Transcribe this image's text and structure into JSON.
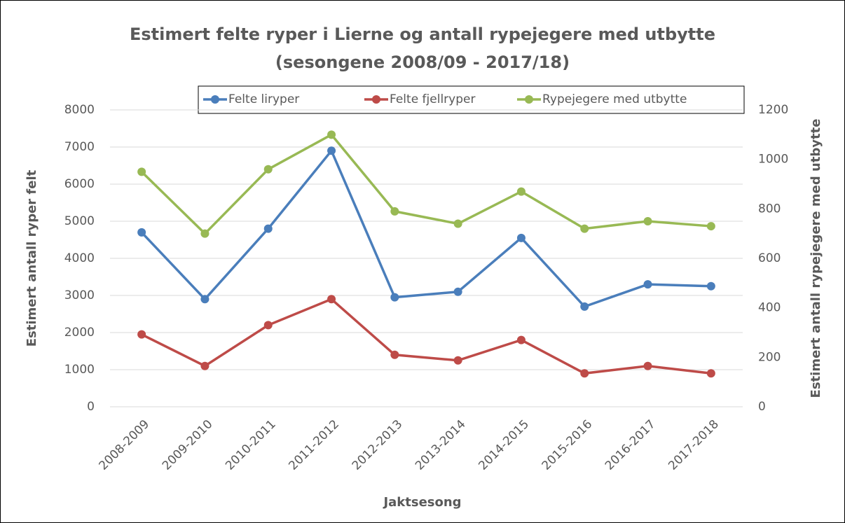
{
  "chart_data": {
    "type": "line",
    "title": [
      "Estimert felte ryper i Lierne og antall rypejegere med utbytte",
      "(sesongene 2008/09 - 2017/18)"
    ],
    "xlabel": "Jaktsesong",
    "ylabel": "Estimert antall ryper felt",
    "y2label": "Estimert antall rypejegere med utbytte",
    "categories": [
      "2008-2009",
      "2009-2010",
      "2010-2011",
      "2011-2012",
      "2012-2013",
      "2013-2014",
      "2014-2015",
      "2015-2016",
      "2016-2017",
      "2017-2018"
    ],
    "series": [
      {
        "name": "Felte liryper",
        "color": "#4a7ebb",
        "values": [
          4700,
          2900,
          4800,
          6900,
          2950,
          3100,
          4550,
          2700,
          3300,
          3250
        ]
      },
      {
        "name": "Felte fjellryper",
        "color": "#be4b48",
        "values": [
          1950,
          1100,
          2200,
          2900,
          1400,
          1250,
          1800,
          900,
          1100,
          900
        ]
      },
      {
        "name": "Rypejegere med utbytte",
        "color": "#98b954",
        "axis": "y2",
        "values": [
          950,
          700,
          960,
          1100,
          790,
          740,
          870,
          720,
          750,
          730
        ]
      }
    ],
    "ylim": [
      0,
      8000
    ],
    "yticks": [
      0,
      1000,
      2000,
      3000,
      4000,
      5000,
      6000,
      7000,
      8000
    ],
    "y2lim": [
      0,
      1200
    ],
    "y2ticks": [
      0,
      200,
      400,
      600,
      800,
      1000,
      1200
    ],
    "grid": true,
    "legend": "top"
  }
}
